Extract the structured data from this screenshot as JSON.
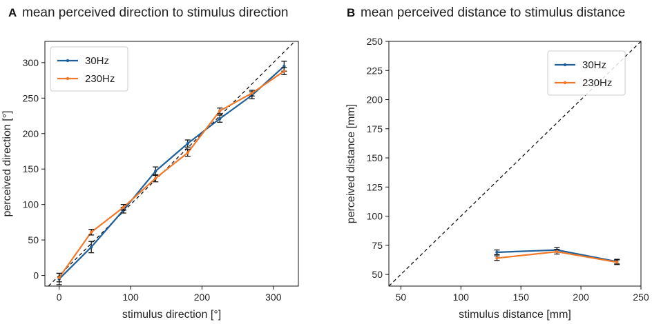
{
  "chart_data": [
    {
      "type": "line",
      "panel_letter": "A",
      "title": "mean perceived direction to stimulus direction",
      "xlabel": "stimulus direction [°]",
      "ylabel": "perceived direction [°]",
      "xlim": [
        -20,
        335
      ],
      "ylim": [
        -15,
        330
      ],
      "xticks": [
        0,
        100,
        200,
        300
      ],
      "yticks": [
        0,
        50,
        100,
        150,
        200,
        250,
        300
      ],
      "reference": "identity",
      "legend_position": "top-left",
      "series": [
        {
          "name": "30Hz",
          "color": "#1f5f99",
          "x": [
            0,
            45,
            90,
            135,
            180,
            225,
            270,
            315
          ],
          "y": [
            -5,
            40,
            92,
            147,
            186,
            221,
            254,
            295
          ],
          "err": [
            8,
            8,
            4,
            6,
            5,
            5,
            5,
            7
          ]
        },
        {
          "name": "230Hz",
          "color": "#f07828",
          "x": [
            0,
            45,
            90,
            135,
            180,
            225,
            270,
            315
          ],
          "y": [
            -3,
            61,
            96,
            137,
            173,
            232,
            257,
            288
          ],
          "err": [
            6,
            4,
            4,
            5,
            5,
            4,
            4,
            5
          ]
        }
      ]
    },
    {
      "type": "line",
      "panel_letter": "B",
      "title": "mean perceived distance to stimulus distance",
      "xlabel": "stimulus distance [mm]",
      "ylabel": "perceived distance [mm]",
      "xlim": [
        40,
        250
      ],
      "ylim": [
        40,
        250
      ],
      "xticks": [
        50,
        100,
        150,
        200,
        250
      ],
      "yticks": [
        50,
        75,
        100,
        125,
        150,
        175,
        200,
        225,
        250
      ],
      "reference": "identity",
      "legend_position": "top-right",
      "series": [
        {
          "name": "30Hz",
          "color": "#1f5f99",
          "x": [
            130,
            180,
            230
          ],
          "y": [
            69,
            71,
            61
          ],
          "err": [
            2,
            2,
            2
          ]
        },
        {
          "name": "230Hz",
          "color": "#f07828",
          "x": [
            130,
            180,
            230
          ],
          "y": [
            64,
            69.5,
            60.5
          ],
          "err": [
            2,
            2,
            2
          ]
        }
      ]
    }
  ]
}
